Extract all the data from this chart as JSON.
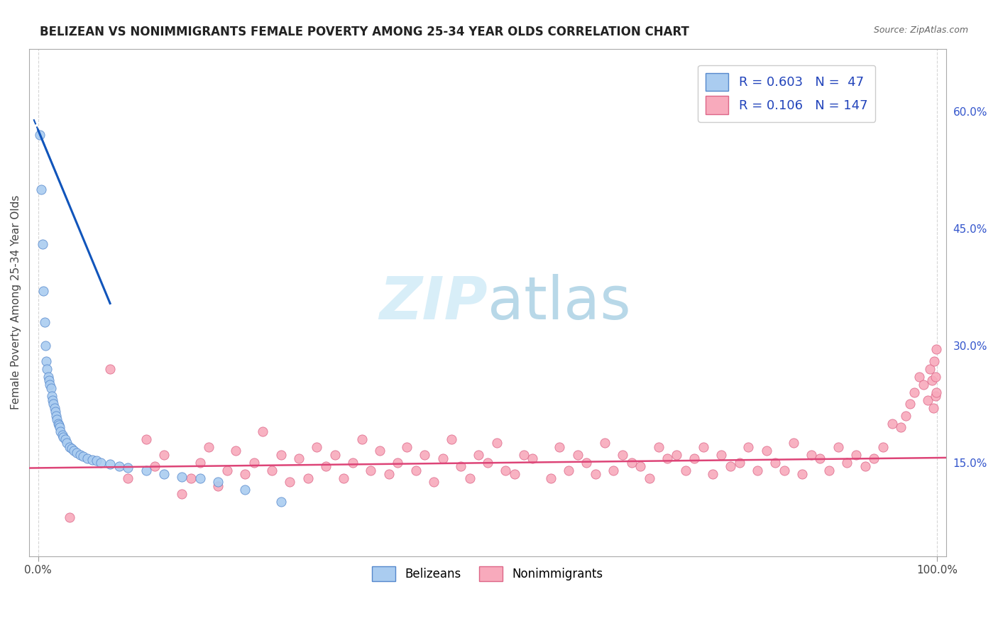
{
  "title": "BELIZEAN VS NONIMMIGRANTS FEMALE POVERTY AMONG 25-34 YEAR OLDS CORRELATION CHART",
  "source": "Source: ZipAtlas.com",
  "ylabel": "Female Poverty Among 25-34 Year Olds",
  "xlim": [
    -1,
    101
  ],
  "ylim": [
    3,
    68
  ],
  "y_ticks": [
    15,
    30,
    45,
    60
  ],
  "y_tick_labels": [
    "15.0%",
    "30.0%",
    "45.0%",
    "60.0%"
  ],
  "belizean_R": 0.603,
  "belizean_N": 47,
  "nonimm_R": 0.106,
  "nonimm_N": 147,
  "belizean_color": "#aaccf0",
  "belizean_edge": "#5588cc",
  "nonimm_color": "#f8aabc",
  "nonimm_edge": "#dd6688",
  "blue_line_color": "#1155bb",
  "pink_line_color": "#dd4477",
  "watermark_color": "#d8eef8",
  "background_color": "#ffffff",
  "grid_color": "#cccccc",
  "belizean_x": [
    0.2,
    0.3,
    0.5,
    0.6,
    0.7,
    0.8,
    0.9,
    1.0,
    1.1,
    1.2,
    1.3,
    1.4,
    1.5,
    1.6,
    1.7,
    1.8,
    1.9,
    2.0,
    2.1,
    2.2,
    2.3,
    2.4,
    2.5,
    2.7,
    2.8,
    3.0,
    3.2,
    3.5,
    3.7,
    4.0,
    4.3,
    4.7,
    5.0,
    5.5,
    6.0,
    6.5,
    7.0,
    8.0,
    9.0,
    10.0,
    12.0,
    14.0,
    16.0,
    18.0,
    20.0,
    23.0,
    27.0
  ],
  "belizean_y": [
    57.0,
    50.0,
    43.0,
    37.0,
    33.0,
    30.0,
    28.0,
    27.0,
    26.0,
    25.5,
    25.0,
    24.5,
    23.5,
    23.0,
    22.5,
    22.0,
    21.5,
    21.0,
    20.5,
    20.0,
    19.8,
    19.5,
    19.0,
    18.5,
    18.2,
    18.0,
    17.5,
    17.0,
    16.8,
    16.5,
    16.2,
    16.0,
    15.8,
    15.5,
    15.3,
    15.2,
    15.0,
    14.8,
    14.5,
    14.3,
    14.0,
    13.5,
    13.2,
    13.0,
    12.5,
    11.5,
    10.0
  ],
  "nonimm_x": [
    3.5,
    8.0,
    10.0,
    12.0,
    13.0,
    14.0,
    16.0,
    17.0,
    18.0,
    19.0,
    20.0,
    21.0,
    22.0,
    23.0,
    24.0,
    25.0,
    26.0,
    27.0,
    28.0,
    29.0,
    30.0,
    31.0,
    32.0,
    33.0,
    34.0,
    35.0,
    36.0,
    37.0,
    38.0,
    39.0,
    40.0,
    41.0,
    42.0,
    43.0,
    44.0,
    45.0,
    46.0,
    47.0,
    48.0,
    49.0,
    50.0,
    51.0,
    52.0,
    53.0,
    54.0,
    55.0,
    57.0,
    58.0,
    59.0,
    60.0,
    61.0,
    62.0,
    63.0,
    64.0,
    65.0,
    66.0,
    67.0,
    68.0,
    69.0,
    70.0,
    71.0,
    72.0,
    73.0,
    74.0,
    75.0,
    76.0,
    77.0,
    78.0,
    79.0,
    80.0,
    81.0,
    82.0,
    83.0,
    84.0,
    85.0,
    86.0,
    87.0,
    88.0,
    89.0,
    90.0,
    91.0,
    92.0,
    93.0,
    94.0,
    95.0,
    96.0,
    96.5,
    97.0,
    97.5,
    98.0,
    98.5,
    99.0,
    99.2,
    99.4,
    99.6,
    99.7,
    99.8,
    99.85,
    99.9,
    99.95
  ],
  "nonimm_y_extra": [
    8.0,
    27.0,
    13.0,
    18.0,
    14.5,
    16.0,
    11.0,
    13.0,
    15.0,
    17.0,
    12.0,
    14.0,
    16.5,
    13.5,
    15.0,
    19.0,
    14.0,
    16.0,
    12.5,
    15.5,
    13.0,
    17.0,
    14.5,
    16.0,
    13.0,
    15.0,
    18.0,
    14.0,
    16.5,
    13.5,
    15.0,
    17.0,
    14.0,
    16.0,
    12.5,
    15.5,
    18.0,
    14.5,
    13.0,
    16.0,
    15.0,
    17.5,
    14.0,
    13.5,
    16.0,
    15.5,
    13.0,
    17.0,
    14.0,
    16.0,
    15.0,
    13.5,
    17.5,
    14.0,
    16.0,
    15.0,
    14.5,
    13.0,
    17.0,
    15.5,
    16.0,
    14.0,
    15.5,
    17.0,
    13.5,
    16.0,
    14.5,
    15.0,
    17.0,
    14.0,
    16.5,
    15.0,
    14.0,
    17.5,
    13.5,
    16.0,
    15.5,
    14.0,
    17.0,
    15.0,
    16.0,
    14.5,
    15.5,
    17.0,
    20.0,
    19.5,
    21.0,
    22.5,
    24.0,
    26.0,
    25.0,
    23.0,
    27.0,
    25.5,
    22.0,
    28.0,
    23.5,
    26.0,
    29.5,
    24.0
  ],
  "nonimm_outlier_x": [
    99.8
  ],
  "nonimm_outlier_y": [
    30.0
  ]
}
